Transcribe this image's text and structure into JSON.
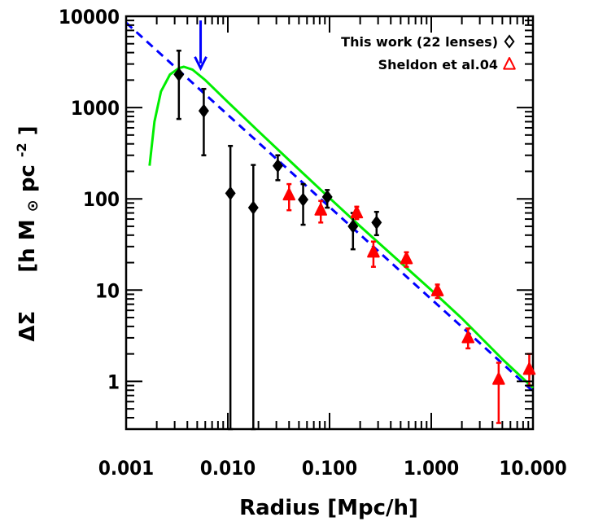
{
  "chart_data": {
    "type": "scatter",
    "title": "",
    "xlabel": "Radius [Mpc/h]",
    "ylabel_prefix": "ΔΣ",
    "ylabel_units": "[h M",
    "ylabel_sun": "⊙",
    "ylabel_tail": " pc",
    "ylabel_exp": "-2",
    "ylabel_close": "]",
    "xscale": "log",
    "yscale": "log",
    "xlim": [
      0.001,
      10
    ],
    "ylim": [
      0.3,
      10000
    ],
    "xticks": [
      {
        "value": 0.001,
        "label": "0.001"
      },
      {
        "value": 0.01,
        "label": "0.010"
      },
      {
        "value": 0.1,
        "label": "0.100"
      },
      {
        "value": 1,
        "label": "1.000"
      },
      {
        "value": 10,
        "label": "10.000"
      }
    ],
    "yticks": [
      {
        "value": 1,
        "label": "1"
      },
      {
        "value": 10,
        "label": "10"
      },
      {
        "value": 100,
        "label": "100"
      },
      {
        "value": 1000,
        "label": "1000"
      },
      {
        "value": 10000,
        "label": "10000"
      }
    ],
    "legend_position": "top-right",
    "series": [
      {
        "name": "This work (22 lenses)",
        "marker": "diamond",
        "color": "#000000",
        "points": [
          {
            "x": 0.0033,
            "y": 2300,
            "ylo": 750,
            "yhi": 4200
          },
          {
            "x": 0.0058,
            "y": 920,
            "ylo": 300,
            "yhi": 1600
          },
          {
            "x": 0.0106,
            "y": 115,
            "ylo": 0.3,
            "yhi": 380
          },
          {
            "x": 0.0178,
            "y": 80,
            "ylo": 0.3,
            "yhi": 235
          },
          {
            "x": 0.031,
            "y": 230,
            "ylo": 160,
            "yhi": 300
          },
          {
            "x": 0.055,
            "y": 98,
            "ylo": 52,
            "yhi": 145
          },
          {
            "x": 0.095,
            "y": 105,
            "ylo": 80,
            "yhi": 125
          },
          {
            "x": 0.17,
            "y": 50,
            "ylo": 28,
            "yhi": 70
          },
          {
            "x": 0.29,
            "y": 55,
            "ylo": 40,
            "yhi": 72
          }
        ]
      },
      {
        "name": "Sheldon et al.04",
        "marker": "triangle",
        "color": "#ff0000",
        "points": [
          {
            "x": 0.04,
            "y": 110,
            "ylo": 75,
            "yhi": 145
          },
          {
            "x": 0.082,
            "y": 75,
            "ylo": 55,
            "yhi": 95
          },
          {
            "x": 0.185,
            "y": 70,
            "ylo": 60,
            "yhi": 82
          },
          {
            "x": 0.27,
            "y": 26,
            "ylo": 18,
            "yhi": 34
          },
          {
            "x": 0.57,
            "y": 22,
            "ylo": 18,
            "yhi": 26
          },
          {
            "x": 1.15,
            "y": 9.8,
            "ylo": 8.2,
            "yhi": 11.5
          },
          {
            "x": 2.3,
            "y": 3,
            "ylo": 2.3,
            "yhi": 3.8
          },
          {
            "x": 4.6,
            "y": 1.05,
            "ylo": 0.35,
            "yhi": 1.6
          },
          {
            "x": 9.2,
            "y": 1.35,
            "ylo": 0.9,
            "yhi": 2.0
          }
        ]
      }
    ],
    "model_curves": [
      {
        "style": "dashed",
        "color": "#0000ff",
        "points": [
          [
            0.001,
            8500
          ],
          [
            10,
            0.78
          ]
        ]
      },
      {
        "style": "solid",
        "color": "#00ee00",
        "points": [
          [
            0.0017,
            230
          ],
          [
            0.0019,
            700
          ],
          [
            0.0022,
            1500
          ],
          [
            0.0027,
            2300
          ],
          [
            0.0033,
            2700
          ],
          [
            0.0037,
            2800
          ],
          [
            0.0045,
            2600
          ],
          [
            0.006,
            2000
          ],
          [
            0.01,
            1150
          ],
          [
            0.02,
            550
          ],
          [
            0.05,
            210
          ],
          [
            0.1,
            102
          ],
          [
            0.2,
            50
          ],
          [
            0.5,
            20
          ],
          [
            1,
            10
          ],
          [
            2,
            4.9
          ],
          [
            5,
            1.75
          ],
          [
            10,
            0.85
          ]
        ]
      }
    ],
    "annotations": [
      {
        "type": "arrow",
        "color": "#0000ff",
        "x": 0.0054,
        "y_from": 9000,
        "y_to": 2700
      }
    ]
  }
}
